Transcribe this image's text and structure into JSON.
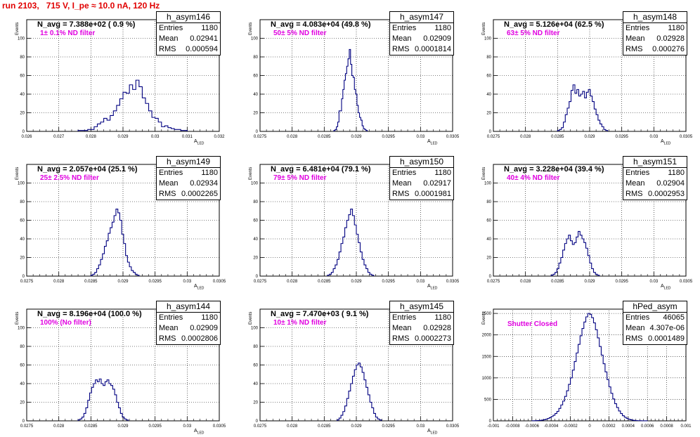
{
  "page_title": "run 2103,   715 V, I_pe ≈ 10.0 nA, 120 Hz",
  "stat_labels": {
    "entries": "Entries",
    "mean": "Mean",
    "rms": "RMS"
  },
  "panels": [
    {
      "name": "h_asym146",
      "navg": "N_avg = 7.388e+02 ( 0.9 %)",
      "filter": "1± 0.1% ND filter",
      "entries": "1180",
      "mean": "0.02941",
      "rms": "0.000594",
      "xlabel": "A",
      "xsub": "LED",
      "ylabel": "Events"
    },
    {
      "name": "h_asym147",
      "navg": "N_avg = 4.083e+04 (49.8 %)",
      "filter": "50± 5% ND filter",
      "entries": "1180",
      "mean": "0.02909",
      "rms": "0.0001814",
      "xlabel": "A",
      "xsub": "LED",
      "ylabel": "Events"
    },
    {
      "name": "h_asym148",
      "navg": "N_avg = 5.126e+04 (62.5 %)",
      "filter": "63± 5% ND filter",
      "entries": "1180",
      "mean": "0.02928",
      "rms": "0.000276",
      "xlabel": "A",
      "xsub": "LED",
      "ylabel": "Events"
    },
    {
      "name": "h_asym149",
      "navg": "N_avg = 2.057e+04 (25.1 %)",
      "filter": "25± 2.5% ND filter",
      "entries": "1180",
      "mean": "0.02934",
      "rms": "0.0002265",
      "xlabel": "A",
      "xsub": "LED",
      "ylabel": "Events"
    },
    {
      "name": "h_asym150",
      "navg": "N_avg = 6.481e+04 (79.1 %)",
      "filter": "79± 5% ND filter",
      "entries": "1180",
      "mean": "0.02917",
      "rms": "0.0001981",
      "xlabel": "A",
      "xsub": "LED",
      "ylabel": "Events"
    },
    {
      "name": "h_asym151",
      "navg": "N_avg = 3.228e+04 (39.4 %)",
      "filter": "40± 4% ND filter",
      "entries": "1180",
      "mean": "0.02904",
      "rms": "0.0002953",
      "xlabel": "A",
      "xsub": "LED",
      "ylabel": "Events"
    },
    {
      "name": "h_asym144",
      "navg": "N_avg = 8.196e+04 (100.0 %)",
      "filter": "100% (No filter)",
      "entries": "1180",
      "mean": "0.02909",
      "rms": "0.0002806",
      "xlabel": "A",
      "xsub": "LED",
      "ylabel": "Events"
    },
    {
      "name": "h_asym145",
      "navg": "N_avg = 7.470e+03 ( 9.1 %)",
      "filter": "10± 1% ND filter",
      "entries": "1180",
      "mean": "0.02928",
      "rms": "0.0002273",
      "xlabel": "A",
      "xsub": "LED",
      "ylabel": "Events"
    },
    {
      "name": "hPed_asym",
      "navg": "",
      "filter": "Shutter Closed",
      "entries": "46065",
      "mean": "4.307e-06",
      "rms": "0.0001489",
      "xlabel": "",
      "xsub": "",
      "ylabel": "Events"
    }
  ],
  "chart_data": [
    {
      "type": "histogram",
      "name": "h_asym146",
      "xlim": [
        0.026,
        0.032
      ],
      "ylim": [
        0,
        120
      ],
      "xticks": [
        "0.026",
        "0.027",
        "0.028",
        "0.029",
        "0.03",
        "0.031",
        "0.032"
      ],
      "yticks": [
        "0",
        "20",
        "40",
        "60",
        "80",
        "100"
      ],
      "bins_x0": 0.0276,
      "bin_width": 0.0001,
      "values": [
        1,
        1,
        1,
        2,
        2,
        5,
        8,
        10,
        14,
        12,
        17,
        22,
        28,
        35,
        42,
        41,
        50,
        45,
        55,
        48,
        36,
        30,
        22,
        15,
        14,
        10,
        5,
        6,
        4,
        3,
        2,
        2,
        1,
        1
      ]
    },
    {
      "type": "histogram",
      "name": "h_asym147",
      "xlim": [
        0.0275,
        0.0305
      ],
      "ylim": [
        0,
        120
      ],
      "xticks": [
        "0.0275",
        "0.028",
        "0.0285",
        "0.029",
        "0.0295",
        "0.03",
        "0.0305"
      ],
      "yticks": [
        "0",
        "20",
        "40",
        "60",
        "80",
        "100"
      ],
      "bins_x0": 0.02865,
      "bin_width": 2e-05,
      "values": [
        1,
        2,
        5,
        10,
        22,
        22,
        35,
        45,
        55,
        62,
        70,
        78,
        88,
        72,
        60,
        58,
        45,
        40,
        28,
        20,
        15,
        12,
        6,
        3,
        2,
        1
      ]
    },
    {
      "type": "histogram",
      "name": "h_asym148",
      "xlim": [
        0.0275,
        0.0305
      ],
      "ylim": [
        0,
        120
      ],
      "xticks": [
        "0.0275",
        "0.028",
        "0.0285",
        "0.029",
        "0.0295",
        "0.03",
        "0.0305"
      ],
      "yticks": [
        "0",
        "20",
        "40",
        "60",
        "80",
        "100"
      ],
      "bins_x0": 0.0285,
      "bin_width": 3e-05,
      "values": [
        1,
        2,
        4,
        10,
        18,
        25,
        32,
        44,
        50,
        41,
        45,
        38,
        40,
        43,
        36,
        42,
        45,
        38,
        32,
        24,
        18,
        12,
        8,
        5,
        2,
        1
      ]
    },
    {
      "type": "histogram",
      "name": "h_asym149",
      "xlim": [
        0.0275,
        0.0305
      ],
      "ylim": [
        0,
        120
      ],
      "xticks": [
        "0.0275",
        "0.028",
        "0.0285",
        "0.029",
        "0.0295",
        "0.03",
        "0.0305"
      ],
      "yticks": [
        "0",
        "20",
        "40",
        "60",
        "80",
        "100"
      ],
      "bins_x0": 0.0285,
      "bin_width": 3e-05,
      "values": [
        1,
        2,
        4,
        8,
        12,
        18,
        24,
        32,
        38,
        46,
        52,
        58,
        65,
        72,
        68,
        60,
        45,
        35,
        22,
        15,
        10,
        6,
        4,
        2,
        1
      ]
    },
    {
      "type": "histogram",
      "name": "h_asym150",
      "xlim": [
        0.0275,
        0.0305
      ],
      "ylim": [
        0,
        120
      ],
      "xticks": [
        "0.0275",
        "0.028",
        "0.0285",
        "0.029",
        "0.0295",
        "0.03",
        "0.0305"
      ],
      "yticks": [
        "0",
        "20",
        "40",
        "60",
        "80",
        "100"
      ],
      "bins_x0": 0.02855,
      "bin_width": 3e-05,
      "values": [
        1,
        2,
        4,
        8,
        12,
        18,
        26,
        35,
        42,
        52,
        60,
        66,
        72,
        65,
        55,
        45,
        36,
        26,
        18,
        12,
        8,
        4,
        2,
        1
      ]
    },
    {
      "type": "histogram",
      "name": "h_asym151",
      "xlim": [
        0.0275,
        0.0305
      ],
      "ylim": [
        0,
        120
      ],
      "xticks": [
        "0.0275",
        "0.028",
        "0.0285",
        "0.029",
        "0.0295",
        "0.03",
        "0.0305"
      ],
      "yticks": [
        "0",
        "20",
        "40",
        "60",
        "80",
        "100"
      ],
      "bins_x0": 0.0284,
      "bin_width": 3e-05,
      "values": [
        1,
        2,
        4,
        8,
        14,
        20,
        28,
        35,
        40,
        44,
        38,
        34,
        36,
        42,
        48,
        44,
        40,
        36,
        30,
        22,
        14,
        8,
        4,
        2,
        1
      ]
    },
    {
      "type": "histogram",
      "name": "h_asym144",
      "xlim": [
        0.0275,
        0.0305
      ],
      "ylim": [
        0,
        120
      ],
      "xticks": [
        "0.0275",
        "0.028",
        "0.0285",
        "0.029",
        "0.0295",
        "0.03",
        "0.0305"
      ],
      "yticks": [
        "0",
        "20",
        "40",
        "60",
        "80",
        "100"
      ],
      "bins_x0": 0.0283,
      "bin_width": 3e-05,
      "values": [
        1,
        2,
        4,
        8,
        14,
        22,
        30,
        36,
        40,
        44,
        42,
        45,
        40,
        38,
        42,
        44,
        40,
        38,
        34,
        28,
        20,
        14,
        8,
        4,
        2,
        1
      ]
    },
    {
      "type": "histogram",
      "name": "h_asym145",
      "xlim": [
        0.0275,
        0.0305
      ],
      "ylim": [
        0,
        120
      ],
      "xticks": [
        "0.0275",
        "0.028",
        "0.0285",
        "0.029",
        "0.0295",
        "0.03",
        "0.0305"
      ],
      "yticks": [
        "0",
        "20",
        "40",
        "60",
        "80",
        "100"
      ],
      "bins_x0": 0.0287,
      "bin_width": 3e-05,
      "values": [
        1,
        3,
        6,
        10,
        16,
        24,
        32,
        40,
        48,
        55,
        60,
        62,
        58,
        52,
        44,
        36,
        28,
        20,
        14,
        8,
        4,
        2,
        1
      ]
    },
    {
      "type": "histogram",
      "name": "hPed_asym",
      "xlim": [
        -0.001,
        0.001
      ],
      "ylim": [
        0,
        2600
      ],
      "xticks": [
        "-0.001",
        "-0.0008",
        "-0.0006",
        "-0.0004",
        "-0.0002",
        "0",
        "0.0002",
        "0.0004",
        "0.0006",
        "0.0008",
        "0.001"
      ],
      "yticks": [
        "0",
        "500",
        "1000",
        "1500",
        "2000",
        "2500"
      ],
      "bins_x0": -0.0006,
      "bin_width": 2e-05,
      "values": [
        2,
        3,
        5,
        8,
        12,
        18,
        26,
        38,
        55,
        75,
        100,
        130,
        170,
        220,
        290,
        370,
        460,
        570,
        700,
        850,
        1000,
        1180,
        1380,
        1580,
        1780,
        1980,
        2150,
        2300,
        2420,
        2500,
        2480,
        2400,
        2280,
        2120,
        1930,
        1730,
        1530,
        1330,
        1140,
        960,
        790,
        640,
        510,
        400,
        310,
        230,
        170,
        120,
        85,
        58,
        38,
        25,
        16,
        10,
        6,
        4,
        3,
        2,
        1,
        1
      ]
    }
  ]
}
